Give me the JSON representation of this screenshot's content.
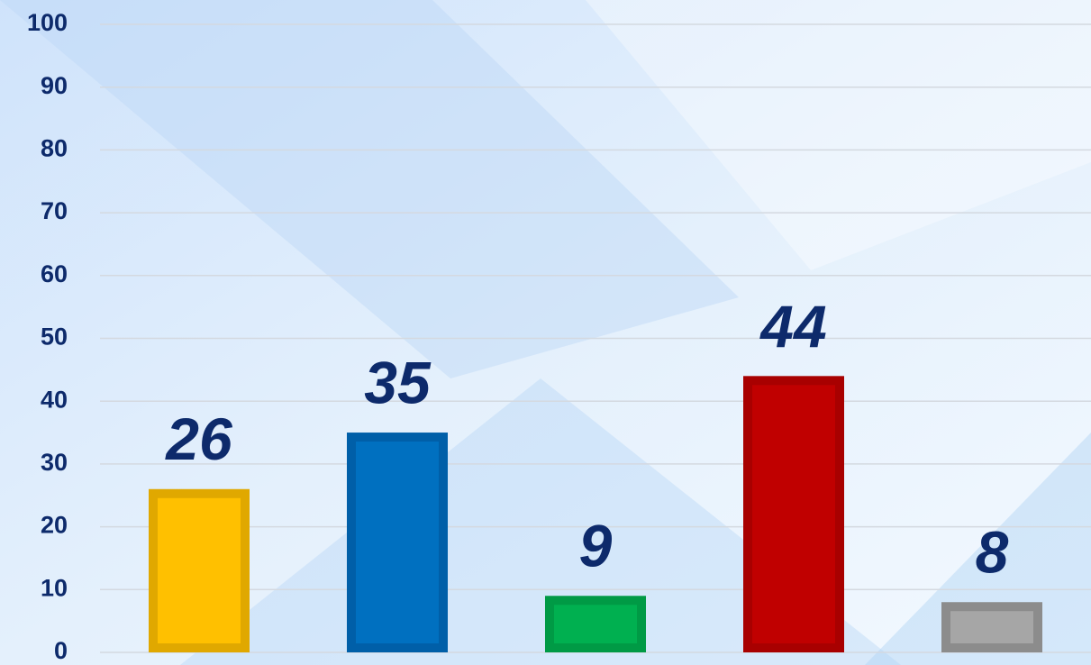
{
  "chart_data": {
    "type": "bar",
    "categories": [
      null,
      null,
      null,
      null,
      null
    ],
    "values": [
      26,
      35,
      9,
      44,
      8
    ],
    "colors": [
      "#ffc000",
      "#0070c0",
      "#00b050",
      "#c00000",
      "#a6a6a6"
    ],
    "edge_colors": [
      "#e0a800",
      "#005fa8",
      "#009a45",
      "#a80000",
      "#8c8c8c"
    ],
    "ylim": [
      0,
      100
    ],
    "yticks": [
      0,
      10,
      20,
      30,
      40,
      50,
      60,
      70,
      80,
      90,
      100
    ],
    "grid": true
  }
}
